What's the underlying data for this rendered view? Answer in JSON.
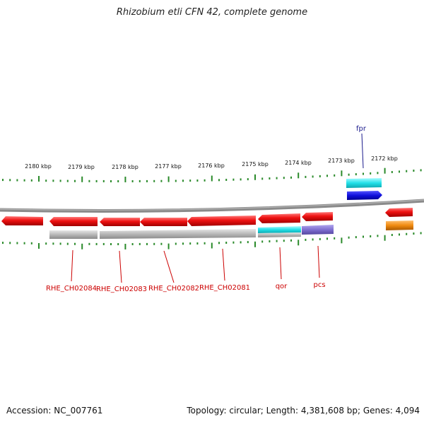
{
  "title": "Rhizobium etli CFN 42, complete genome",
  "footer": {
    "accession": "Accession: NC_007761",
    "summary": "Topology: circular; Length: 4,381,608 bp; Genes: 4,094"
  },
  "scale_labels": [
    "2180 kbp",
    "2179 kbp",
    "2178 kbp",
    "2177 kbp",
    "2176 kbp",
    "2175 kbp",
    "2174 kbp",
    "2173 kbp",
    "2172 kbp"
  ],
  "gene_labels": [
    "fpr",
    "RHE_CH02084",
    "RHE_CH02083",
    "RHE_CH02082",
    "RHE_CH02081",
    "qor",
    "pcs"
  ],
  "colors": {
    "gene_red": "#ee1111",
    "gene_cyan": "#22e0e8",
    "gene_blue": "#1010dd",
    "gene_orange": "#f08a10",
    "cds_gray": "#b8b8b8",
    "cds_purple": "#7f6fd0",
    "tick_green": "#2a8a2a",
    "backbone_gray": "#777777",
    "label_red": "#cc0000",
    "label_blue": "#1a1a8c"
  }
}
